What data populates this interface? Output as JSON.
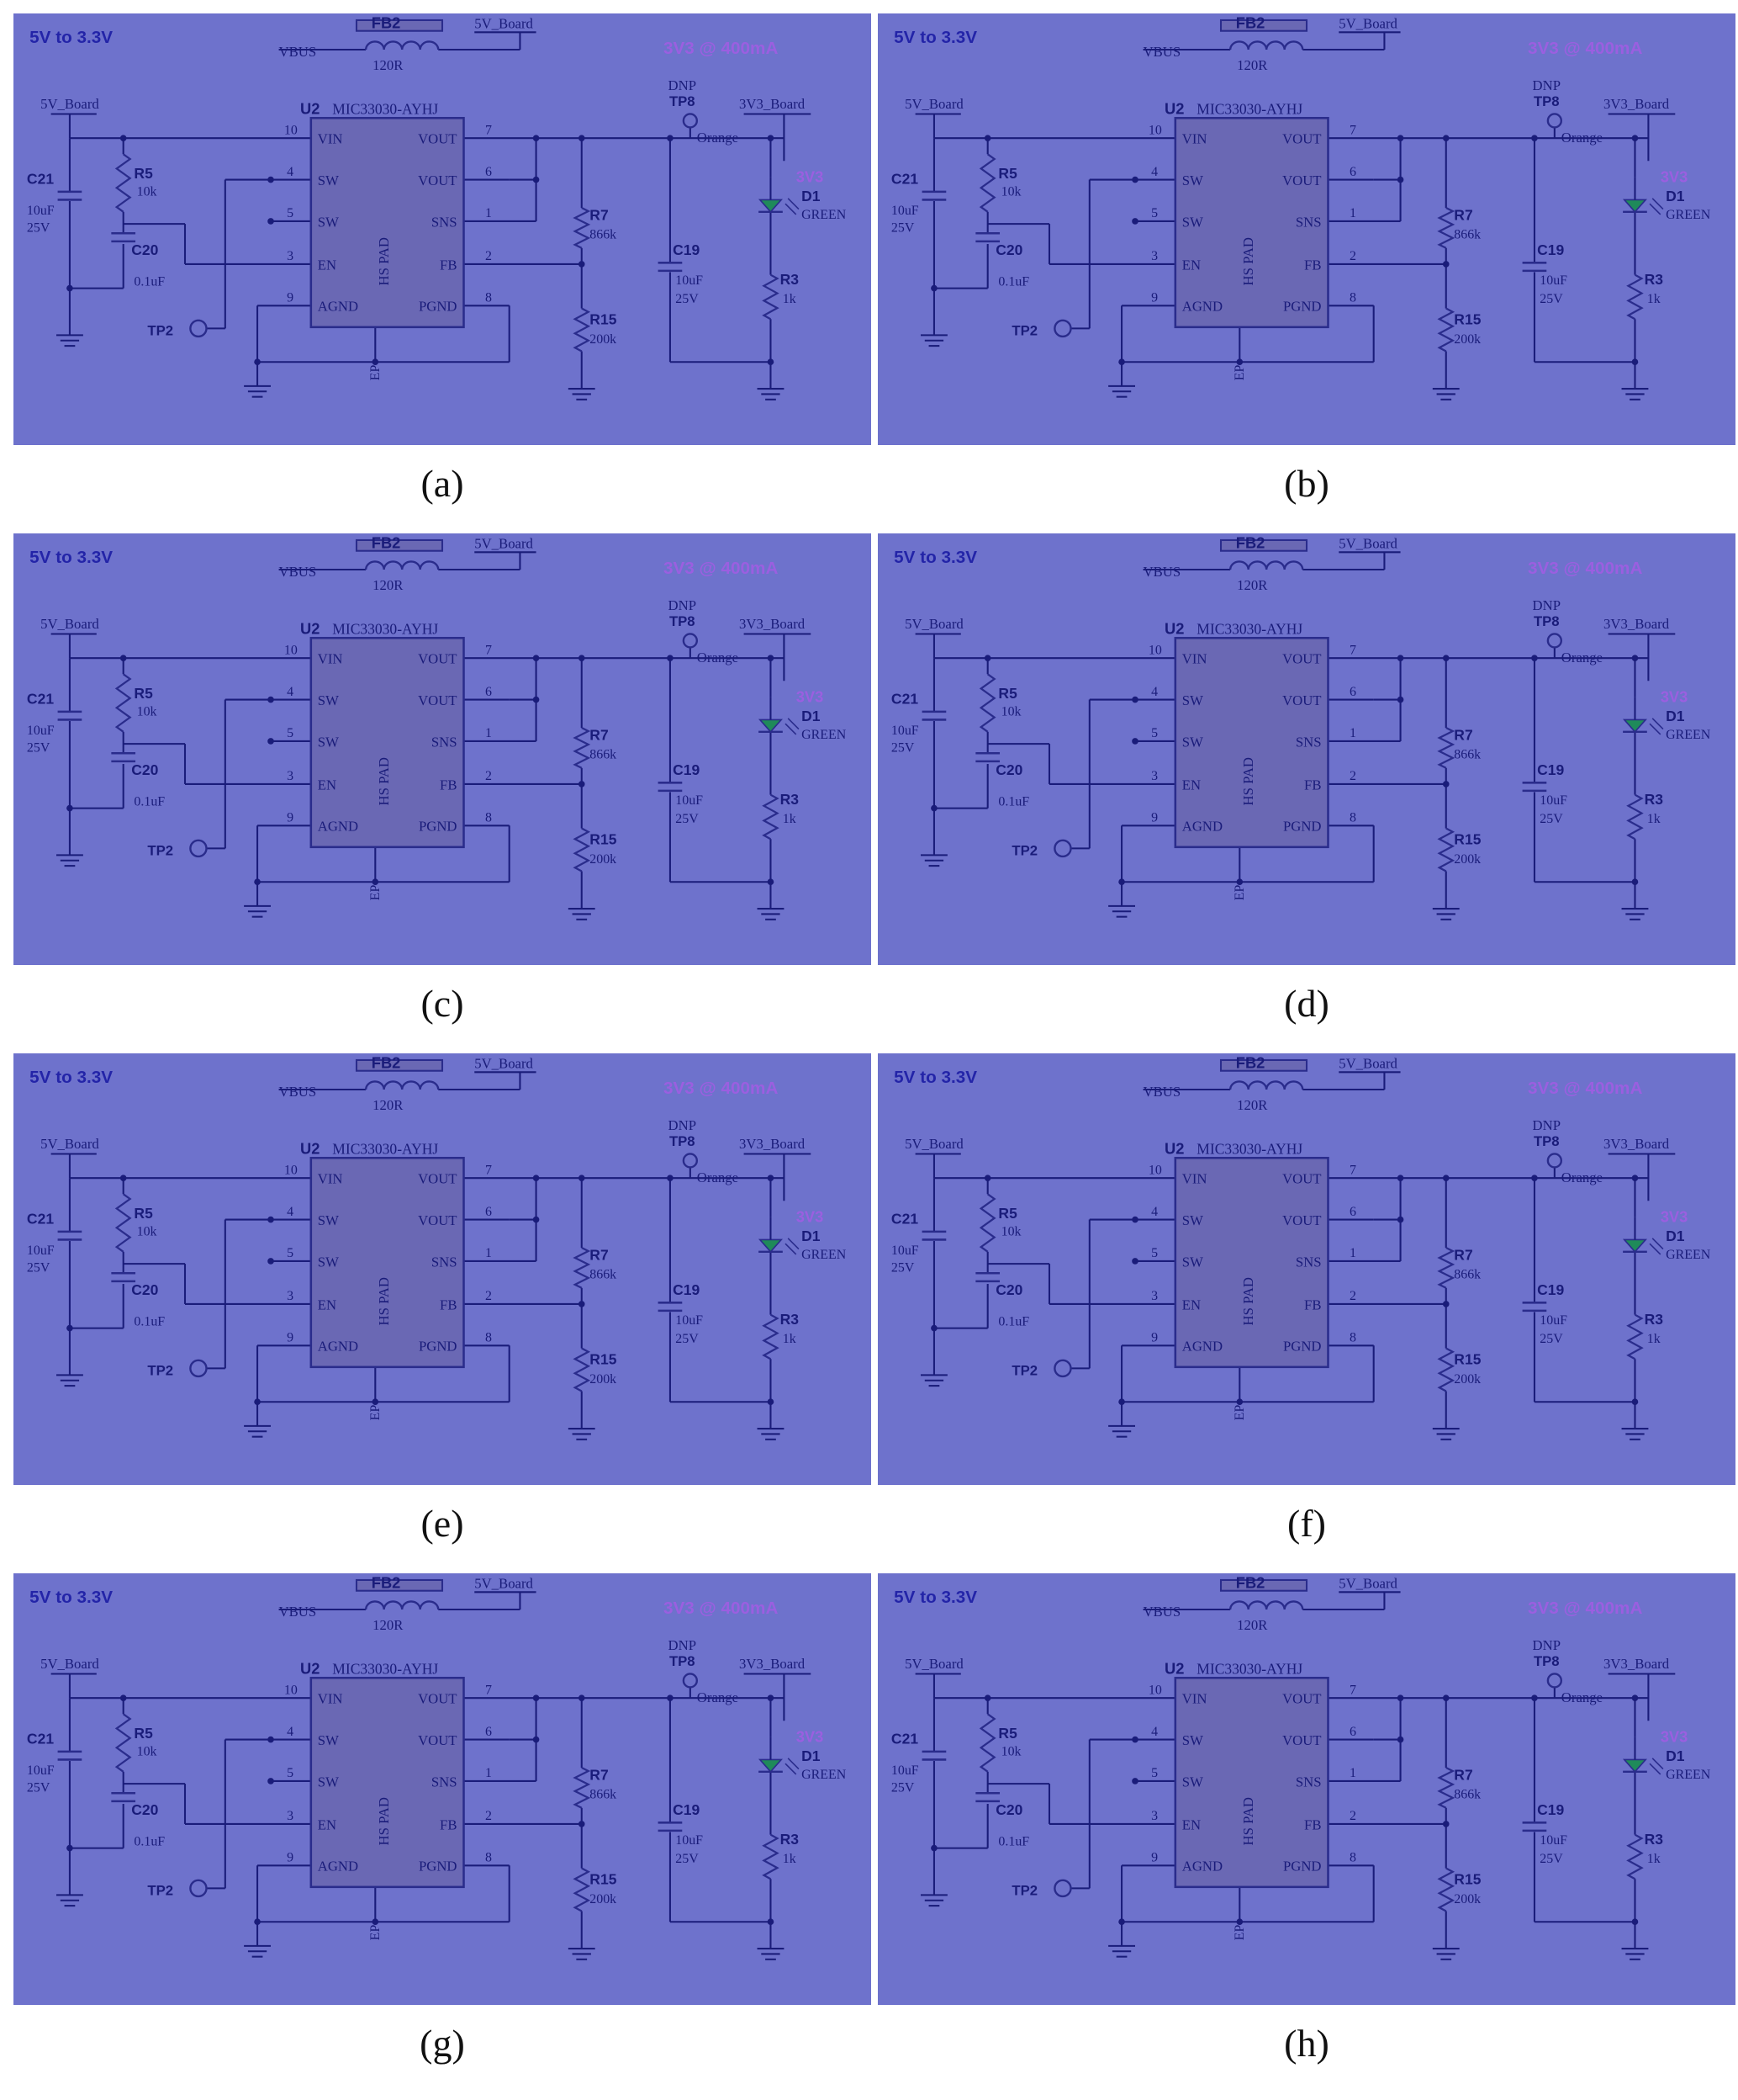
{
  "figure": {
    "panels": [
      {
        "id": "a",
        "caption": "(a)"
      },
      {
        "id": "b",
        "caption": "(b)"
      },
      {
        "id": "c",
        "caption": "(c)"
      },
      {
        "id": "d",
        "caption": "(d)"
      },
      {
        "id": "e",
        "caption": "(e)"
      },
      {
        "id": "f",
        "caption": "(f)"
      },
      {
        "id": "g",
        "caption": "(g)"
      },
      {
        "id": "h",
        "caption": "(h)"
      }
    ]
  },
  "schematic": {
    "title": "5V to 3.3V",
    "output_label": "3V3 @ 400mA",
    "vbus": "VBUS",
    "fb2": "FB2",
    "fb2_value": "120R",
    "board_5v": "5V_Board",
    "board_3v3": "3V3_Board",
    "dnp": "DNP",
    "tp8": "TP8",
    "tp8_color": "Orange",
    "tp2": "TP2",
    "u2": "U2",
    "u2_part": "MIC33030-AYHJ",
    "pin_vin": "VIN",
    "pin_sw1": "SW",
    "pin_sw2": "SW",
    "pin_en": "EN",
    "pin_agnd": "AGND",
    "pin_vout1": "VOUT",
    "pin_vout2": "VOUT",
    "pin_sns": "SNS",
    "pin_fb": "FB",
    "pin_pgnd": "PGND",
    "hs_pad": "HS PAD",
    "ep": "EP",
    "n10": "10",
    "n4": "4",
    "n5": "5",
    "n3": "3",
    "n9": "9",
    "n7": "7",
    "n6": "6",
    "n1": "1",
    "n2": "2",
    "n8": "8",
    "c21": "C21",
    "c21_v1": "10uF",
    "c21_v2": "25V",
    "r5": "R5",
    "r5_v": "10k",
    "c20": "C20",
    "c20_v": "0.1uF",
    "r7": "R7",
    "r7_v": "866k",
    "r15": "R15",
    "r15_v": "200k",
    "c19": "C19",
    "c19_v1": "10uF",
    "c19_v2": "25V",
    "d1_net": "3V3",
    "d1": "D1",
    "d1_color": "GREEN",
    "r3": "R3",
    "r3_v": "1k"
  },
  "colors": {
    "background": "#6e72cc",
    "wire": "#1a1c7a",
    "component": "#2a2c8c",
    "ic_fill": "#6a68b4",
    "title": "#2324a8",
    "output_label": "#9b5fe0",
    "led": "#1f8a5a"
  }
}
